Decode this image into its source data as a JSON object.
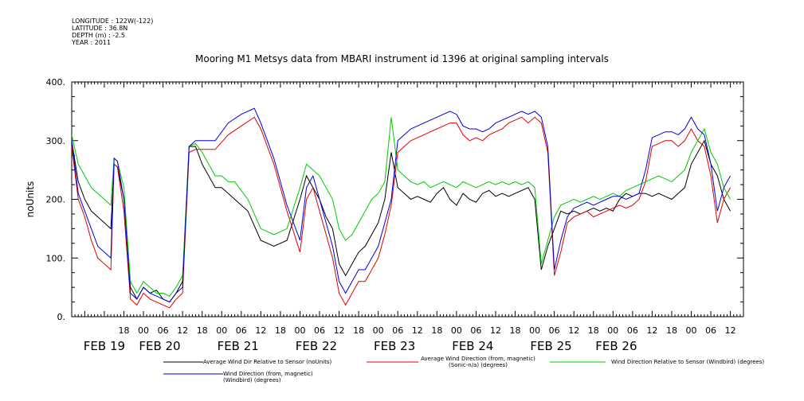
{
  "meta": {
    "longitude": "LONGITUDE : 122W(-122)",
    "latitude": "LATITUDE : 36.8N",
    "depth": "DEPTH (m) : -2.5",
    "year": "YEAR : 2011"
  },
  "chart_data": {
    "type": "line",
    "title": "Mooring M1 Metsys data from MBARI instrument id 1396 at original sampling intervals",
    "ylabel": "noUnits",
    "ylim": [
      0,
      400
    ],
    "yticks": [
      0,
      100,
      200,
      300,
      400
    ],
    "ytick_labels": [
      "0.",
      "100.",
      "200.",
      "300.",
      "400."
    ],
    "xlim_hours": [
      -10,
      196
    ],
    "xtick_hour_labels": [
      {
        "h": 6,
        "label": "18"
      },
      {
        "h": 12,
        "label": "00"
      },
      {
        "h": 18,
        "label": "06"
      },
      {
        "h": 24,
        "label": "12"
      },
      {
        "h": 30,
        "label": "18"
      },
      {
        "h": 36,
        "label": "00"
      },
      {
        "h": 42,
        "label": "06"
      },
      {
        "h": 48,
        "label": "12"
      },
      {
        "h": 54,
        "label": "18"
      },
      {
        "h": 60,
        "label": "00"
      },
      {
        "h": 66,
        "label": "06"
      },
      {
        "h": 72,
        "label": "12"
      },
      {
        "h": 78,
        "label": "18"
      },
      {
        "h": 84,
        "label": "00"
      },
      {
        "h": 90,
        "label": "06"
      },
      {
        "h": 96,
        "label": "12"
      },
      {
        "h": 102,
        "label": "18"
      },
      {
        "h": 108,
        "label": "00"
      },
      {
        "h": 114,
        "label": "06"
      },
      {
        "h": 120,
        "label": "12"
      },
      {
        "h": 126,
        "label": "18"
      },
      {
        "h": 132,
        "label": "00"
      },
      {
        "h": 138,
        "label": "06"
      },
      {
        "h": 144,
        "label": "12"
      },
      {
        "h": 150,
        "label": "18"
      },
      {
        "h": 156,
        "label": "00"
      },
      {
        "h": 162,
        "label": "06"
      },
      {
        "h": 168,
        "label": "12"
      },
      {
        "h": 174,
        "label": "18"
      },
      {
        "h": 180,
        "label": "00"
      },
      {
        "h": 186,
        "label": "06"
      },
      {
        "h": 192,
        "label": "12"
      }
    ],
    "date_labels": [
      {
        "h": 0,
        "label": "FEB 19"
      },
      {
        "h": 17,
        "label": "FEB 20"
      },
      {
        "h": 41,
        "label": "FEB 21"
      },
      {
        "h": 65,
        "label": "FEB 22"
      },
      {
        "h": 89,
        "label": "FEB 23"
      },
      {
        "h": 113,
        "label": "FEB 24"
      },
      {
        "h": 137,
        "label": "FEB 25"
      },
      {
        "h": 157,
        "label": "FEB 26"
      }
    ],
    "series": [
      {
        "name": "Average Wind Dir Relative to Sensor (noUnits)",
        "color": "#000000",
        "x": [
          -10,
          -8,
          -6,
          -4,
          -2,
          0,
          1,
          2,
          3,
          4,
          6,
          8,
          10,
          12,
          14,
          16,
          18,
          20,
          22,
          24,
          26,
          28,
          30,
          32,
          34,
          36,
          38,
          40,
          44,
          48,
          52,
          56,
          60,
          62,
          64,
          66,
          68,
          70,
          72,
          74,
          76,
          78,
          80,
          82,
          84,
          86,
          88,
          90,
          92,
          94,
          96,
          98,
          100,
          102,
          104,
          106,
          108,
          110,
          112,
          114,
          116,
          118,
          120,
          122,
          124,
          126,
          128,
          130,
          132,
          134,
          136,
          138,
          140,
          142,
          144,
          146,
          148,
          150,
          152,
          154,
          156,
          158,
          160,
          162,
          164,
          166,
          168,
          170,
          172,
          174,
          176,
          178,
          180,
          182,
          184,
          186,
          188,
          190,
          192
        ],
        "y": [
          300,
          230,
          200,
          180,
          170,
          160,
          155,
          150,
          260,
          255,
          200,
          50,
          30,
          50,
          40,
          45,
          30,
          25,
          40,
          60,
          290,
          290,
          260,
          240,
          220,
          220,
          210,
          200,
          180,
          130,
          120,
          130,
          200,
          240,
          220,
          200,
          170,
          150,
          90,
          70,
          90,
          110,
          120,
          140,
          160,
          200,
          280,
          220,
          210,
          200,
          205,
          200,
          195,
          210,
          220,
          200,
          190,
          210,
          200,
          195,
          210,
          215,
          205,
          210,
          205,
          210,
          215,
          220,
          200,
          80,
          120,
          150,
          180,
          175,
          180,
          175,
          180,
          185,
          180,
          185,
          180,
          200,
          210,
          205,
          210,
          210,
          205,
          210,
          205,
          200,
          210,
          220,
          260,
          280,
          300,
          260,
          240,
          200,
          180
        ]
      },
      {
        "name": "Average Wind Direction (from, magnetic) (Sonic-n/a) (degrees)",
        "color": "#e00000",
        "x": [
          -10,
          -8,
          -6,
          -4,
          -2,
          0,
          1,
          2,
          3,
          4,
          6,
          8,
          10,
          12,
          14,
          16,
          18,
          20,
          22,
          24,
          26,
          28,
          30,
          34,
          38,
          42,
          46,
          48,
          52,
          56,
          60,
          62,
          64,
          66,
          68,
          70,
          72,
          74,
          76,
          78,
          80,
          82,
          84,
          86,
          88,
          90,
          92,
          94,
          96,
          98,
          100,
          102,
          104,
          106,
          108,
          110,
          112,
          114,
          116,
          118,
          120,
          122,
          124,
          126,
          128,
          130,
          132,
          134,
          136,
          138,
          140,
          142,
          144,
          146,
          148,
          150,
          152,
          154,
          156,
          158,
          160,
          162,
          164,
          166,
          168,
          170,
          172,
          174,
          176,
          178,
          180,
          182,
          184,
          186,
          188,
          190,
          192
        ],
        "y": [
          290,
          200,
          170,
          130,
          100,
          90,
          85,
          80,
          260,
          255,
          180,
          30,
          20,
          40,
          30,
          25,
          20,
          15,
          30,
          40,
          280,
          285,
          285,
          285,
          310,
          325,
          340,
          320,
          260,
          180,
          110,
          200,
          220,
          180,
          140,
          100,
          40,
          20,
          40,
          60,
          60,
          80,
          100,
          140,
          190,
          280,
          290,
          300,
          305,
          310,
          315,
          320,
          325,
          330,
          330,
          310,
          300,
          305,
          300,
          310,
          315,
          320,
          330,
          335,
          340,
          330,
          340,
          330,
          280,
          70,
          110,
          160,
          170,
          175,
          180,
          170,
          175,
          180,
          185,
          190,
          185,
          190,
          200,
          230,
          290,
          295,
          300,
          300,
          290,
          300,
          320,
          300,
          290,
          240,
          160,
          200,
          220
        ]
      },
      {
        "name": "Wind Direction Relative to Sensor (Windbird) (degrees)",
        "color": "#00cc00",
        "x": [
          -10,
          -8,
          -6,
          -4,
          -2,
          0,
          1,
          2,
          3,
          4,
          6,
          8,
          10,
          12,
          14,
          16,
          18,
          20,
          22,
          24,
          26,
          28,
          30,
          32,
          34,
          36,
          38,
          40,
          44,
          48,
          52,
          56,
          60,
          62,
          64,
          66,
          68,
          70,
          72,
          74,
          76,
          78,
          80,
          82,
          84,
          86,
          88,
          90,
          92,
          94,
          96,
          98,
          100,
          102,
          104,
          106,
          108,
          110,
          112,
          114,
          116,
          118,
          120,
          122,
          124,
          126,
          128,
          130,
          132,
          134,
          136,
          138,
          140,
          142,
          144,
          146,
          148,
          150,
          152,
          154,
          156,
          158,
          160,
          162,
          164,
          166,
          168,
          170,
          172,
          174,
          176,
          178,
          180,
          182,
          184,
          186,
          188,
          190,
          192
        ],
        "y": [
          310,
          260,
          240,
          220,
          210,
          200,
          195,
          190,
          270,
          265,
          220,
          60,
          40,
          60,
          50,
          40,
          40,
          35,
          50,
          70,
          290,
          295,
          280,
          260,
          240,
          240,
          230,
          230,
          200,
          150,
          140,
          150,
          220,
          260,
          250,
          240,
          220,
          200,
          150,
          130,
          140,
          160,
          180,
          200,
          210,
          230,
          340,
          250,
          240,
          230,
          225,
          230,
          220,
          225,
          230,
          225,
          220,
          230,
          225,
          220,
          225,
          230,
          225,
          230,
          225,
          230,
          225,
          230,
          220,
          90,
          130,
          170,
          190,
          195,
          200,
          195,
          200,
          205,
          200,
          205,
          210,
          205,
          215,
          220,
          225,
          230,
          235,
          240,
          235,
          230,
          240,
          250,
          280,
          300,
          320,
          280,
          260,
          220,
          200
        ]
      },
      {
        "name": "Wind Direction (from, magnetic) (Windbird) (degrees)",
        "color": "#0000dd",
        "x": [
          -10,
          -8,
          -6,
          -4,
          -2,
          0,
          1,
          2,
          3,
          4,
          6,
          8,
          10,
          12,
          14,
          16,
          18,
          20,
          22,
          24,
          26,
          28,
          30,
          34,
          38,
          42,
          46,
          48,
          52,
          56,
          60,
          62,
          64,
          66,
          68,
          70,
          72,
          74,
          76,
          78,
          80,
          82,
          84,
          86,
          88,
          90,
          92,
          94,
          96,
          98,
          100,
          102,
          104,
          106,
          108,
          110,
          112,
          114,
          116,
          118,
          120,
          122,
          124,
          126,
          128,
          130,
          132,
          134,
          136,
          138,
          140,
          142,
          144,
          146,
          148,
          150,
          152,
          154,
          156,
          158,
          160,
          162,
          164,
          166,
          168,
          170,
          172,
          174,
          176,
          178,
          180,
          182,
          184,
          186,
          188,
          190,
          192
        ],
        "y": [
          300,
          210,
          180,
          150,
          120,
          110,
          105,
          100,
          270,
          265,
          200,
          40,
          30,
          50,
          40,
          35,
          30,
          25,
          40,
          50,
          290,
          300,
          300,
          300,
          330,
          345,
          355,
          330,
          270,
          190,
          130,
          220,
          240,
          200,
          160,
          120,
          60,
          40,
          60,
          80,
          80,
          100,
          120,
          160,
          200,
          300,
          310,
          320,
          325,
          330,
          335,
          340,
          345,
          350,
          345,
          325,
          320,
          320,
          315,
          320,
          330,
          335,
          340,
          345,
          350,
          345,
          350,
          340,
          290,
          80,
          130,
          170,
          185,
          190,
          195,
          190,
          195,
          200,
          205,
          205,
          200,
          205,
          210,
          250,
          305,
          310,
          315,
          315,
          310,
          320,
          340,
          320,
          310,
          260,
          180,
          220,
          240
        ]
      }
    ]
  }
}
